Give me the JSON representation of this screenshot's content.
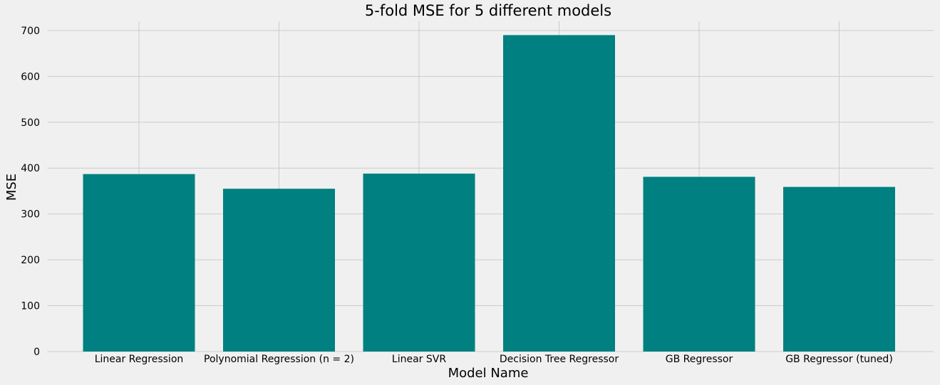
{
  "chart_data": {
    "type": "bar",
    "title": "5-fold MSE for 5 different models",
    "xlabel": "Model Name",
    "ylabel": "MSE",
    "categories": [
      "Linear Regression",
      "Polynomial Regression (n = 2)",
      "Linear SVR",
      "Decision Tree Regressor",
      "GB Regressor",
      "GB Regressor (tuned)"
    ],
    "values": [
      387,
      355,
      388,
      690,
      381,
      359
    ],
    "ylim": [
      0,
      720
    ],
    "yticks": [
      0,
      100,
      200,
      300,
      400,
      500,
      600,
      700
    ],
    "grid": true,
    "colors": {
      "bar": "#008080",
      "background": "#f0f0f0",
      "grid": "#cbcbcb"
    }
  }
}
